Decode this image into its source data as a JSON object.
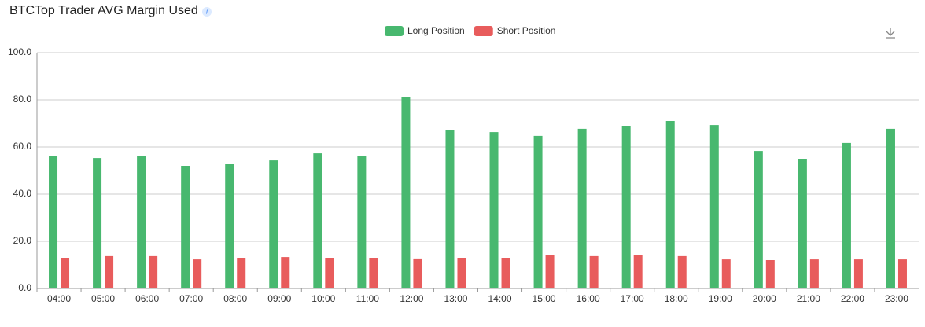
{
  "chart_data": {
    "type": "bar",
    "title": "BTCTop Trader AVG Margin Used",
    "categories": [
      "04:00",
      "05:00",
      "06:00",
      "07:00",
      "08:00",
      "09:00",
      "10:00",
      "11:00",
      "12:00",
      "13:00",
      "14:00",
      "15:00",
      "16:00",
      "17:00",
      "18:00",
      "19:00",
      "20:00",
      "21:00",
      "22:00",
      "23:00"
    ],
    "series": [
      {
        "name": "Long Position",
        "color": "#48b86f",
        "values": [
          56.3,
          55.3,
          56.3,
          52,
          52.7,
          54.3,
          57.3,
          56.3,
          81,
          67.3,
          66.3,
          64.7,
          67.7,
          69,
          71,
          69.3,
          58.3,
          55,
          61.7,
          67.7
        ]
      },
      {
        "name": "Short Position",
        "color": "#e85c5c",
        "values": [
          13,
          13.7,
          13.7,
          12.3,
          13,
          13.3,
          13,
          13,
          12.7,
          13,
          13,
          14.3,
          13.7,
          14,
          13.7,
          12.3,
          12,
          12.3,
          12.3,
          12.3
        ]
      }
    ],
    "ylim": [
      0,
      100
    ],
    "yticks": [
      {
        "value": 0,
        "label": "0.0"
      },
      {
        "value": 20,
        "label": "20.0"
      },
      {
        "value": 40,
        "label": "40.0"
      },
      {
        "value": 60,
        "label": "60.0"
      },
      {
        "value": 80,
        "label": "80.0"
      },
      {
        "value": 100,
        "label": "100.0"
      }
    ],
    "grid": true
  }
}
